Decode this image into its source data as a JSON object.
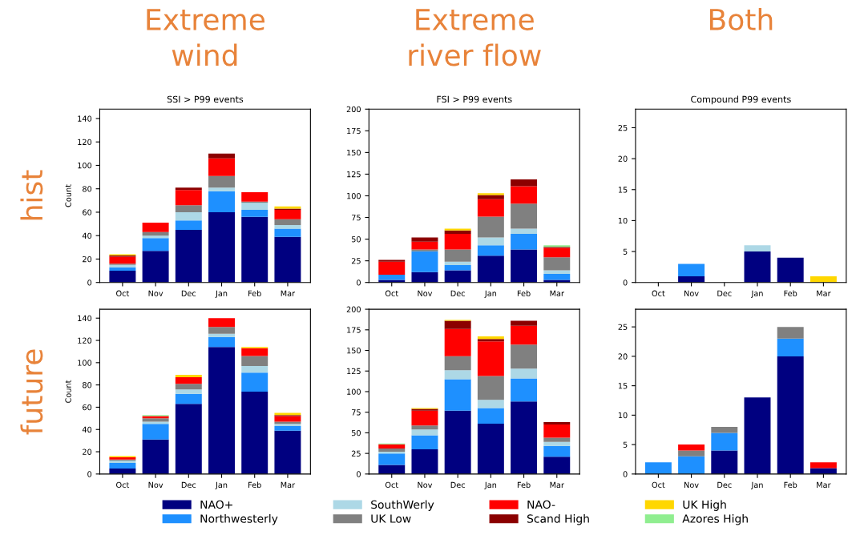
{
  "chart_data": [
    {
      "type": "bar",
      "stacked": true,
      "title": "Extreme wind",
      "subtitle": "SSI > P99 events",
      "ylabel": "Count",
      "annotations": [
        "hist"
      ],
      "legend": "bottom",
      "categories": [
        "Oct",
        "Nov",
        "Dec",
        "Jan",
        "Feb",
        "Mar"
      ],
      "ylim": [
        0,
        148
      ],
      "yticks": [
        0,
        20,
        40,
        60,
        80,
        100,
        120,
        140
      ],
      "series": [
        {
          "name": "NAO+",
          "color": "#000080",
          "values": [
            10,
            27,
            45,
            60,
            56,
            39
          ]
        },
        {
          "name": "Northwesterly",
          "color": "#1e90ff",
          "values": [
            3,
            11,
            8,
            18,
            6,
            7
          ]
        },
        {
          "name": "SouthWerly",
          "color": "#add8e6",
          "values": [
            2,
            2,
            7,
            3,
            6,
            3
          ]
        },
        {
          "name": "UK Low",
          "color": "#808080",
          "values": [
            1,
            3,
            6,
            10,
            1,
            5
          ]
        },
        {
          "name": "NAO-",
          "color": "#ff0000",
          "values": [
            6,
            8,
            13,
            15,
            8,
            8
          ]
        },
        {
          "name": "Scand High",
          "color": "#8b0000",
          "values": [
            1,
            0,
            2,
            4,
            0,
            1
          ]
        },
        {
          "name": "UK High",
          "color": "#ffd700",
          "values": [
            1,
            0,
            0,
            0,
            0,
            2
          ]
        },
        {
          "name": "Azores High",
          "color": "#90ee90",
          "values": [
            0,
            0,
            0,
            0,
            0,
            0
          ]
        }
      ]
    },
    {
      "type": "bar",
      "stacked": true,
      "title": "Extreme river flow",
      "subtitle": "FSI > P99 events",
      "categories": [
        "Oct",
        "Nov",
        "Dec",
        "Jan",
        "Feb",
        "Mar"
      ],
      "ylim": [
        0,
        200
      ],
      "yticks": [
        0,
        25,
        50,
        75,
        100,
        125,
        150,
        175,
        200
      ],
      "series": [
        {
          "color": "#000080",
          "values": [
            3,
            12,
            14,
            31,
            38,
            3
          ]
        },
        {
          "color": "#1e90ff",
          "values": [
            6,
            24,
            6,
            12,
            18,
            7
          ]
        },
        {
          "color": "#add8e6",
          "values": [
            null,
            null,
            4,
            9,
            6,
            4
          ]
        },
        {
          "color": "#808080",
          "values": [
            0,
            2,
            14,
            24,
            29,
            15
          ]
        },
        {
          "color": "#ff0000",
          "values": [
            15,
            9,
            18,
            20,
            20,
            11
          ]
        },
        {
          "color": "#8b0000",
          "values": [
            2,
            5,
            4,
            5,
            8,
            1
          ]
        },
        {
          "color": "#ffd700",
          "values": [
            0,
            0,
            2,
            2,
            0,
            0
          ]
        },
        {
          "color": "#90ee90",
          "values": [
            0,
            0,
            0,
            0,
            0,
            2
          ]
        }
      ]
    },
    {
      "type": "bar",
      "stacked": true,
      "title": "Both",
      "subtitle": "Compound P99 events",
      "categories": [
        "Oct",
        "Nov",
        "Dec",
        "Jan",
        "Feb",
        "Mar"
      ],
      "ylim": [
        0,
        28
      ],
      "yticks": [
        0,
        5,
        10,
        15,
        20,
        25
      ],
      "series": [
        {
          "color": "#000080",
          "values": [
            0,
            1,
            0,
            5,
            4,
            0
          ]
        },
        {
          "color": "#1e90ff",
          "values": [
            0,
            2,
            0,
            0,
            0,
            0
          ]
        },
        {
          "color": "#add8e6",
          "values": [
            0,
            0,
            0,
            1,
            0,
            0
          ]
        },
        {
          "color": "#808080",
          "values": [
            0,
            0,
            0,
            0,
            0,
            0
          ]
        },
        {
          "color": "#ff0000",
          "values": [
            0,
            0,
            0,
            0,
            0,
            0
          ]
        },
        {
          "color": "#8b0000",
          "values": [
            0,
            0,
            0,
            0,
            0,
            0
          ]
        },
        {
          "color": "#ffd700",
          "values": [
            0,
            0,
            0,
            0,
            0,
            1
          ]
        },
        {
          "color": "#90ee90",
          "values": [
            0,
            0,
            0,
            0,
            0,
            0
          ]
        }
      ]
    },
    {
      "type": "bar",
      "stacked": true,
      "ylabel": "Count",
      "annotations": [
        "future"
      ],
      "categories": [
        "Oct",
        "Nov",
        "Dec",
        "Jan",
        "Feb",
        "Mar"
      ],
      "ylim": [
        0,
        148
      ],
      "yticks": [
        0,
        20,
        40,
        60,
        80,
        100,
        120,
        140
      ],
      "series": [
        {
          "color": "#000080",
          "values": [
            5,
            31,
            63,
            114,
            74,
            39
          ]
        },
        {
          "color": "#1e90ff",
          "values": [
            5,
            14,
            9,
            9,
            17,
            4
          ]
        },
        {
          "color": "#add8e6",
          "values": [
            2,
            2,
            4,
            3,
            6,
            2
          ]
        },
        {
          "color": "#808080",
          "values": [
            1,
            3,
            5,
            6,
            9,
            2
          ]
        },
        {
          "color": "#ff0000",
          "values": [
            2,
            2,
            6,
            8,
            7,
            5
          ]
        },
        {
          "color": "#8b0000",
          "values": [
            0,
            0,
            0,
            0,
            0,
            1
          ]
        },
        {
          "color": "#ffd700",
          "values": [
            1,
            0,
            2,
            0,
            1,
            2
          ]
        },
        {
          "color": "#90ee90",
          "values": [
            0,
            1,
            0,
            0,
            0,
            0
          ]
        }
      ]
    },
    {
      "type": "bar",
      "stacked": true,
      "categories": [
        "Oct",
        "Nov",
        "Dec",
        "Jan",
        "Feb",
        "Mar"
      ],
      "ylim": [
        0,
        200
      ],
      "yticks": [
        0,
        25,
        50,
        75,
        100,
        125,
        150,
        175,
        200
      ],
      "series": [
        {
          "color": "#000080",
          "values": [
            11,
            30,
            77,
            61,
            88,
            21
          ]
        },
        {
          "color": "#1e90ff",
          "values": [
            14,
            17,
            38,
            19,
            28,
            13
          ]
        },
        {
          "color": "#add8e6",
          "values": [
            2,
            7,
            11,
            10,
            12,
            5
          ]
        },
        {
          "color": "#808080",
          "values": [
            4,
            5,
            17,
            29,
            29,
            5
          ]
        },
        {
          "color": "#ff0000",
          "values": [
            5,
            18,
            33,
            42,
            23,
            16
          ]
        },
        {
          "color": "#8b0000",
          "values": [
            0,
            2,
            10,
            3,
            6,
            3
          ]
        },
        {
          "color": "#ffd700",
          "values": [
            0,
            1,
            1,
            3,
            0,
            0
          ]
        },
        {
          "color": "#90ee90",
          "values": [
            1,
            0,
            0,
            0,
            0,
            0
          ]
        }
      ]
    },
    {
      "type": "bar",
      "stacked": true,
      "categories": [
        "Oct",
        "Nov",
        "Dec",
        "Jan",
        "Feb",
        "Mar"
      ],
      "ylim": [
        0,
        28
      ],
      "yticks": [
        0,
        5,
        10,
        15,
        20,
        25
      ],
      "series": [
        {
          "color": "#000080",
          "values": [
            0,
            0,
            4,
            13,
            20,
            1
          ]
        },
        {
          "color": "#1e90ff",
          "values": [
            2,
            3,
            3,
            0,
            3,
            0
          ]
        },
        {
          "color": "#add8e6",
          "values": [
            0,
            0,
            0,
            0,
            0,
            0
          ]
        },
        {
          "color": "#808080",
          "values": [
            0,
            1,
            1,
            0,
            2,
            0
          ]
        },
        {
          "color": "#ff0000",
          "values": [
            0,
            1,
            0,
            0,
            0,
            1
          ]
        },
        {
          "color": "#8b0000",
          "values": [
            0,
            0,
            0,
            0,
            0,
            0
          ]
        },
        {
          "color": "#ffd700",
          "values": [
            0,
            0,
            0,
            0,
            0,
            0
          ]
        },
        {
          "color": "#90ee90",
          "values": [
            0,
            0,
            0,
            0,
            0,
            0
          ]
        }
      ]
    }
  ]
}
